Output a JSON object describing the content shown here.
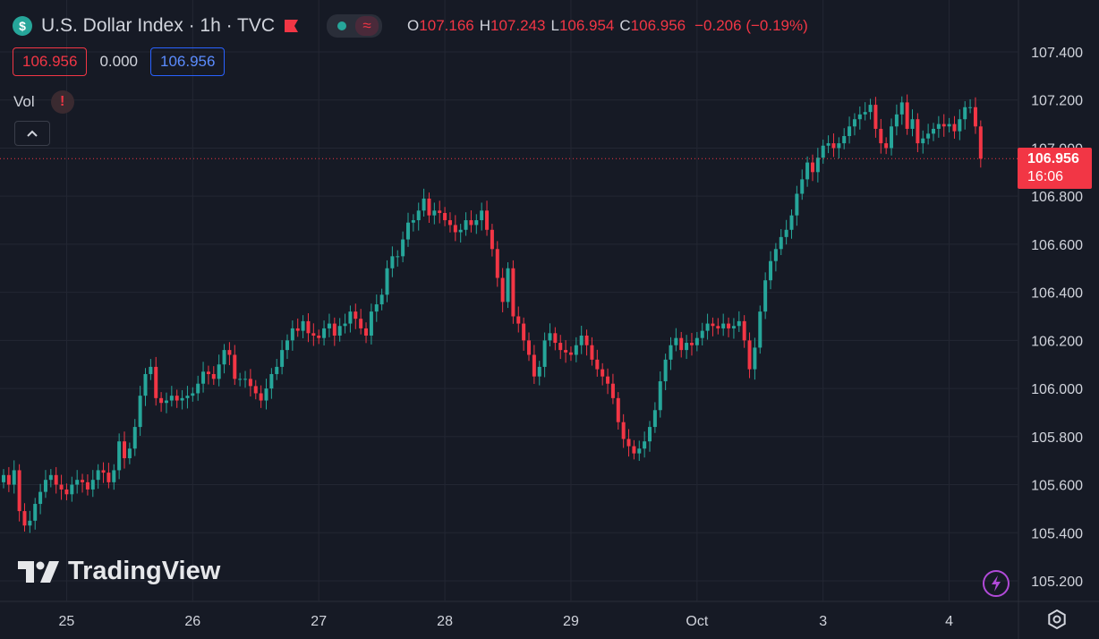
{
  "header": {
    "symbol_icon": "$",
    "title": "U.S. Dollar Index · 1h · TVC",
    "ohlc": {
      "o_label": "O",
      "o": "107.166",
      "h_label": "H",
      "h": "107.243",
      "l_label": "L",
      "l": "106.954",
      "c_label": "C",
      "c": "106.956",
      "change": "−0.206 (−0.19%)"
    }
  },
  "quote_boxes": {
    "bid": "106.956",
    "spread": "0.000",
    "ask": "106.956"
  },
  "vol_label": "Vol",
  "last_price": {
    "price": "106.956",
    "countdown": "16:06"
  },
  "watermark": "TradingView",
  "colors": {
    "up": "#26a69a",
    "down": "#f23645",
    "bg": "#161a25",
    "grid": "#232733",
    "text": "#d1d4dc"
  },
  "icons": [
    "dollar-icon",
    "flag-icon",
    "market-dot-icon",
    "wave-icon",
    "warning-icon",
    "chevron-up-icon",
    "lightning-icon",
    "settings-icon"
  ],
  "chart_data": {
    "type": "candlestick",
    "y_ticks": [
      "107.400",
      "107.200",
      "107.000",
      "106.800",
      "106.600",
      "106.400",
      "106.200",
      "106.000",
      "105.800",
      "105.600",
      "105.400",
      "105.200"
    ],
    "x_ticks": [
      "25",
      "26",
      "27",
      "28",
      "29",
      "Oct",
      "3",
      "4"
    ],
    "ylim": [
      105.12,
      107.48
    ],
    "last_price_line": 106.956,
    "bars_per_day": 24,
    "first_day_tick_bar": 12,
    "closes": [
      105.64,
      105.6,
      105.66,
      105.49,
      105.43,
      105.45,
      105.52,
      105.57,
      105.62,
      105.64,
      105.6,
      105.58,
      105.56,
      105.6,
      105.62,
      105.61,
      105.58,
      105.62,
      105.66,
      105.65,
      105.61,
      105.66,
      105.78,
      105.71,
      105.75,
      105.84,
      105.97,
      106.06,
      106.09,
      105.96,
      105.94,
      105.95,
      105.97,
      105.95,
      105.96,
      105.97,
      105.98,
      106.02,
      106.07,
      106.06,
      106.04,
      106.1,
      106.16,
      106.14,
      106.04,
      106.04,
      106.04,
      106.01,
      105.98,
      105.95,
      106.0,
      106.06,
      106.09,
      106.16,
      106.2,
      106.25,
      106.24,
      106.28,
      106.23,
      106.22,
      106.21,
      106.25,
      106.27,
      106.22,
      106.26,
      106.27,
      106.32,
      106.29,
      106.25,
      106.22,
      106.32,
      106.35,
      106.39,
      106.5,
      106.55,
      106.55,
      106.62,
      106.69,
      106.7,
      106.74,
      106.79,
      106.72,
      106.74,
      106.73,
      106.7,
      106.68,
      106.65,
      106.66,
      106.7,
      106.68,
      106.7,
      106.74,
      106.66,
      106.58,
      106.46,
      106.36,
      106.5,
      106.3,
      106.27,
      106.2,
      106.14,
      106.05,
      106.09,
      106.2,
      106.23,
      106.19,
      106.16,
      106.15,
      106.14,
      106.18,
      106.22,
      106.18,
      106.12,
      106.08,
      106.05,
      106.02,
      105.96,
      105.86,
      105.79,
      105.76,
      105.73,
      105.75,
      105.78,
      105.84,
      105.91,
      106.03,
      106.12,
      106.18,
      106.21,
      106.16,
      106.19,
      106.18,
      106.21,
      106.24,
      106.27,
      106.26,
      106.25,
      106.27,
      106.25,
      106.26,
      106.28,
      106.2,
      106.08,
      106.17,
      106.32,
      106.45,
      106.53,
      106.58,
      106.63,
      106.66,
      106.72,
      106.81,
      106.87,
      106.94,
      106.9,
      106.96,
      107.01,
      107.02,
      107.0,
      107.02,
      107.05,
      107.09,
      107.12,
      107.14,
      107.15,
      107.18,
      107.08,
      107.02,
      107.0,
      107.09,
      107.14,
      107.19,
      107.08,
      107.12,
      107.02,
      107.04,
      107.06,
      107.08,
      107.1,
      107.09,
      107.1,
      107.07,
      107.12,
      107.17,
      107.17,
      107.09,
      106.956
    ]
  }
}
